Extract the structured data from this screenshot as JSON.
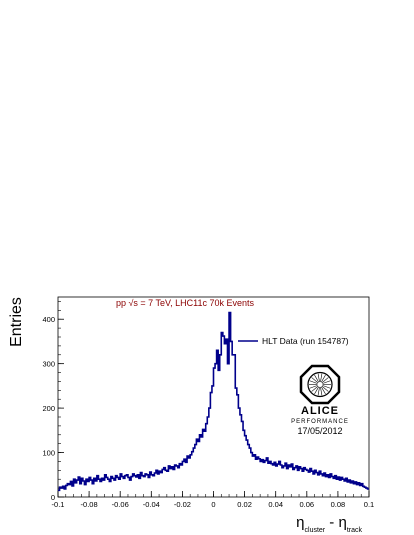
{
  "chart_data": {
    "type": "line",
    "title": "",
    "annotation": "pp √s = 7 TeV, LHC11c 70k Events",
    "annotation_color": "#8b0000",
    "xlabel": {
      "main": "η",
      "sub1": "cluster",
      "mid": " - η",
      "sub2": "track"
    },
    "ylabel": "Entries",
    "xlim": [
      -0.1,
      0.1
    ],
    "ylim": [
      0,
      450
    ],
    "x_ticks": [
      -0.1,
      -0.08,
      -0.06,
      -0.04,
      -0.02,
      0,
      0.02,
      0.04,
      0.06,
      0.08,
      0.1
    ],
    "x_tick_labels": [
      "-0.1",
      "-0.08",
      "-0.06",
      "-0.04",
      "-0.02",
      "0",
      "0.02",
      "0.04",
      "0.06",
      "0.08",
      "0.1"
    ],
    "y_ticks": [
      0,
      100,
      200,
      300,
      400
    ],
    "y_tick_labels": [
      "0",
      "100",
      "200",
      "300",
      "400"
    ],
    "grid": false,
    "legend_position": "top-right",
    "series": [
      {
        "name": "HLT Data (run 154787)",
        "color": "#00008b",
        "bin_width": 0.001,
        "x_start": -0.1,
        "values": [
          15,
          22,
          20,
          24,
          18,
          26,
          30,
          28,
          35,
          25,
          40,
          32,
          38,
          45,
          30,
          42,
          36,
          28,
          40,
          35,
          44,
          38,
          30,
          42,
          36,
          48,
          40,
          35,
          42,
          38,
          50,
          44,
          40,
          35,
          46,
          42,
          38,
          48,
          44,
          40,
          52,
          46,
          42,
          48,
          50,
          44,
          38,
          46,
          52,
          48,
          45,
          50,
          42,
          55,
          48,
          46,
          52,
          50,
          44,
          56,
          50,
          48,
          54,
          60,
          52,
          58,
          55,
          62,
          66,
          60,
          58,
          70,
          64,
          68,
          62,
          72,
          70,
          66,
          75,
          72,
          80,
          85,
          78,
          92,
          88,
          95,
          102,
          110,
          118,
          130,
          125,
          140,
          135,
          152,
          148,
          165,
          180,
          200,
          235,
          250,
          290,
          300,
          330,
          285,
          320,
          370,
          362,
          345,
          355,
          300,
          415,
          350,
          320,
          320,
          245,
          230,
          200,
          185,
          170,
          150,
          138,
          128,
          118,
          110,
          100,
          92,
          95,
          85,
          90,
          86,
          80,
          84,
          78,
          82,
          88,
          76,
          80,
          75,
          72,
          78,
          70,
          74,
          80,
          72,
          66,
          70,
          76,
          64,
          72,
          68,
          74,
          62,
          66,
          70,
          60,
          68,
          64,
          58,
          66,
          62,
          60,
          56,
          64,
          58,
          52,
          60,
          55,
          50,
          58,
          52,
          48,
          54,
          46,
          50,
          44,
          52,
          46,
          42,
          48,
          40,
          45,
          38,
          44,
          40,
          36,
          42,
          34,
          38,
          32,
          36,
          30,
          34,
          28,
          32,
          26,
          30,
          24,
          22,
          20,
          18
        ]
      }
    ]
  },
  "logo": {
    "text": "ALICE",
    "subtext": "PERFORMANCE",
    "date": "17/05/2012"
  }
}
